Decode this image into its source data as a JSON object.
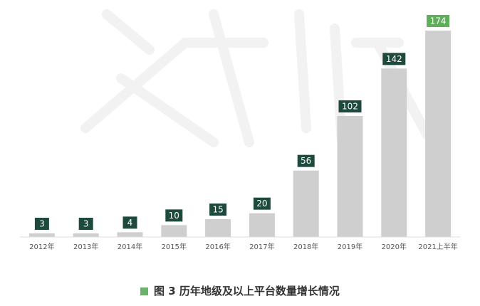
{
  "caption": {
    "text": "图 3 历年地级及以上平台数量增长情况"
  },
  "colors": {
    "bar": "#cfcfcf",
    "label_box": "#1e4a3e",
    "highlight_box": "#5fae5a",
    "watermark": "#f2f2f2",
    "caption_swatch": "#6bb36a"
  },
  "chart_data": {
    "type": "bar",
    "categories": [
      "2012年",
      "2013年",
      "2014年",
      "2015年",
      "2016年",
      "2017年",
      "2018年",
      "2019年",
      "2020年",
      "2021上半年"
    ],
    "values": [
      3,
      3,
      4,
      10,
      15,
      20,
      56,
      102,
      142,
      174
    ],
    "highlight_index": 9,
    "title": "图 3 历年地级及以上平台数量增长情况",
    "xlabel": "",
    "ylabel": "",
    "ylim": [
      0,
      174
    ],
    "grid": false,
    "data_labels": true
  }
}
